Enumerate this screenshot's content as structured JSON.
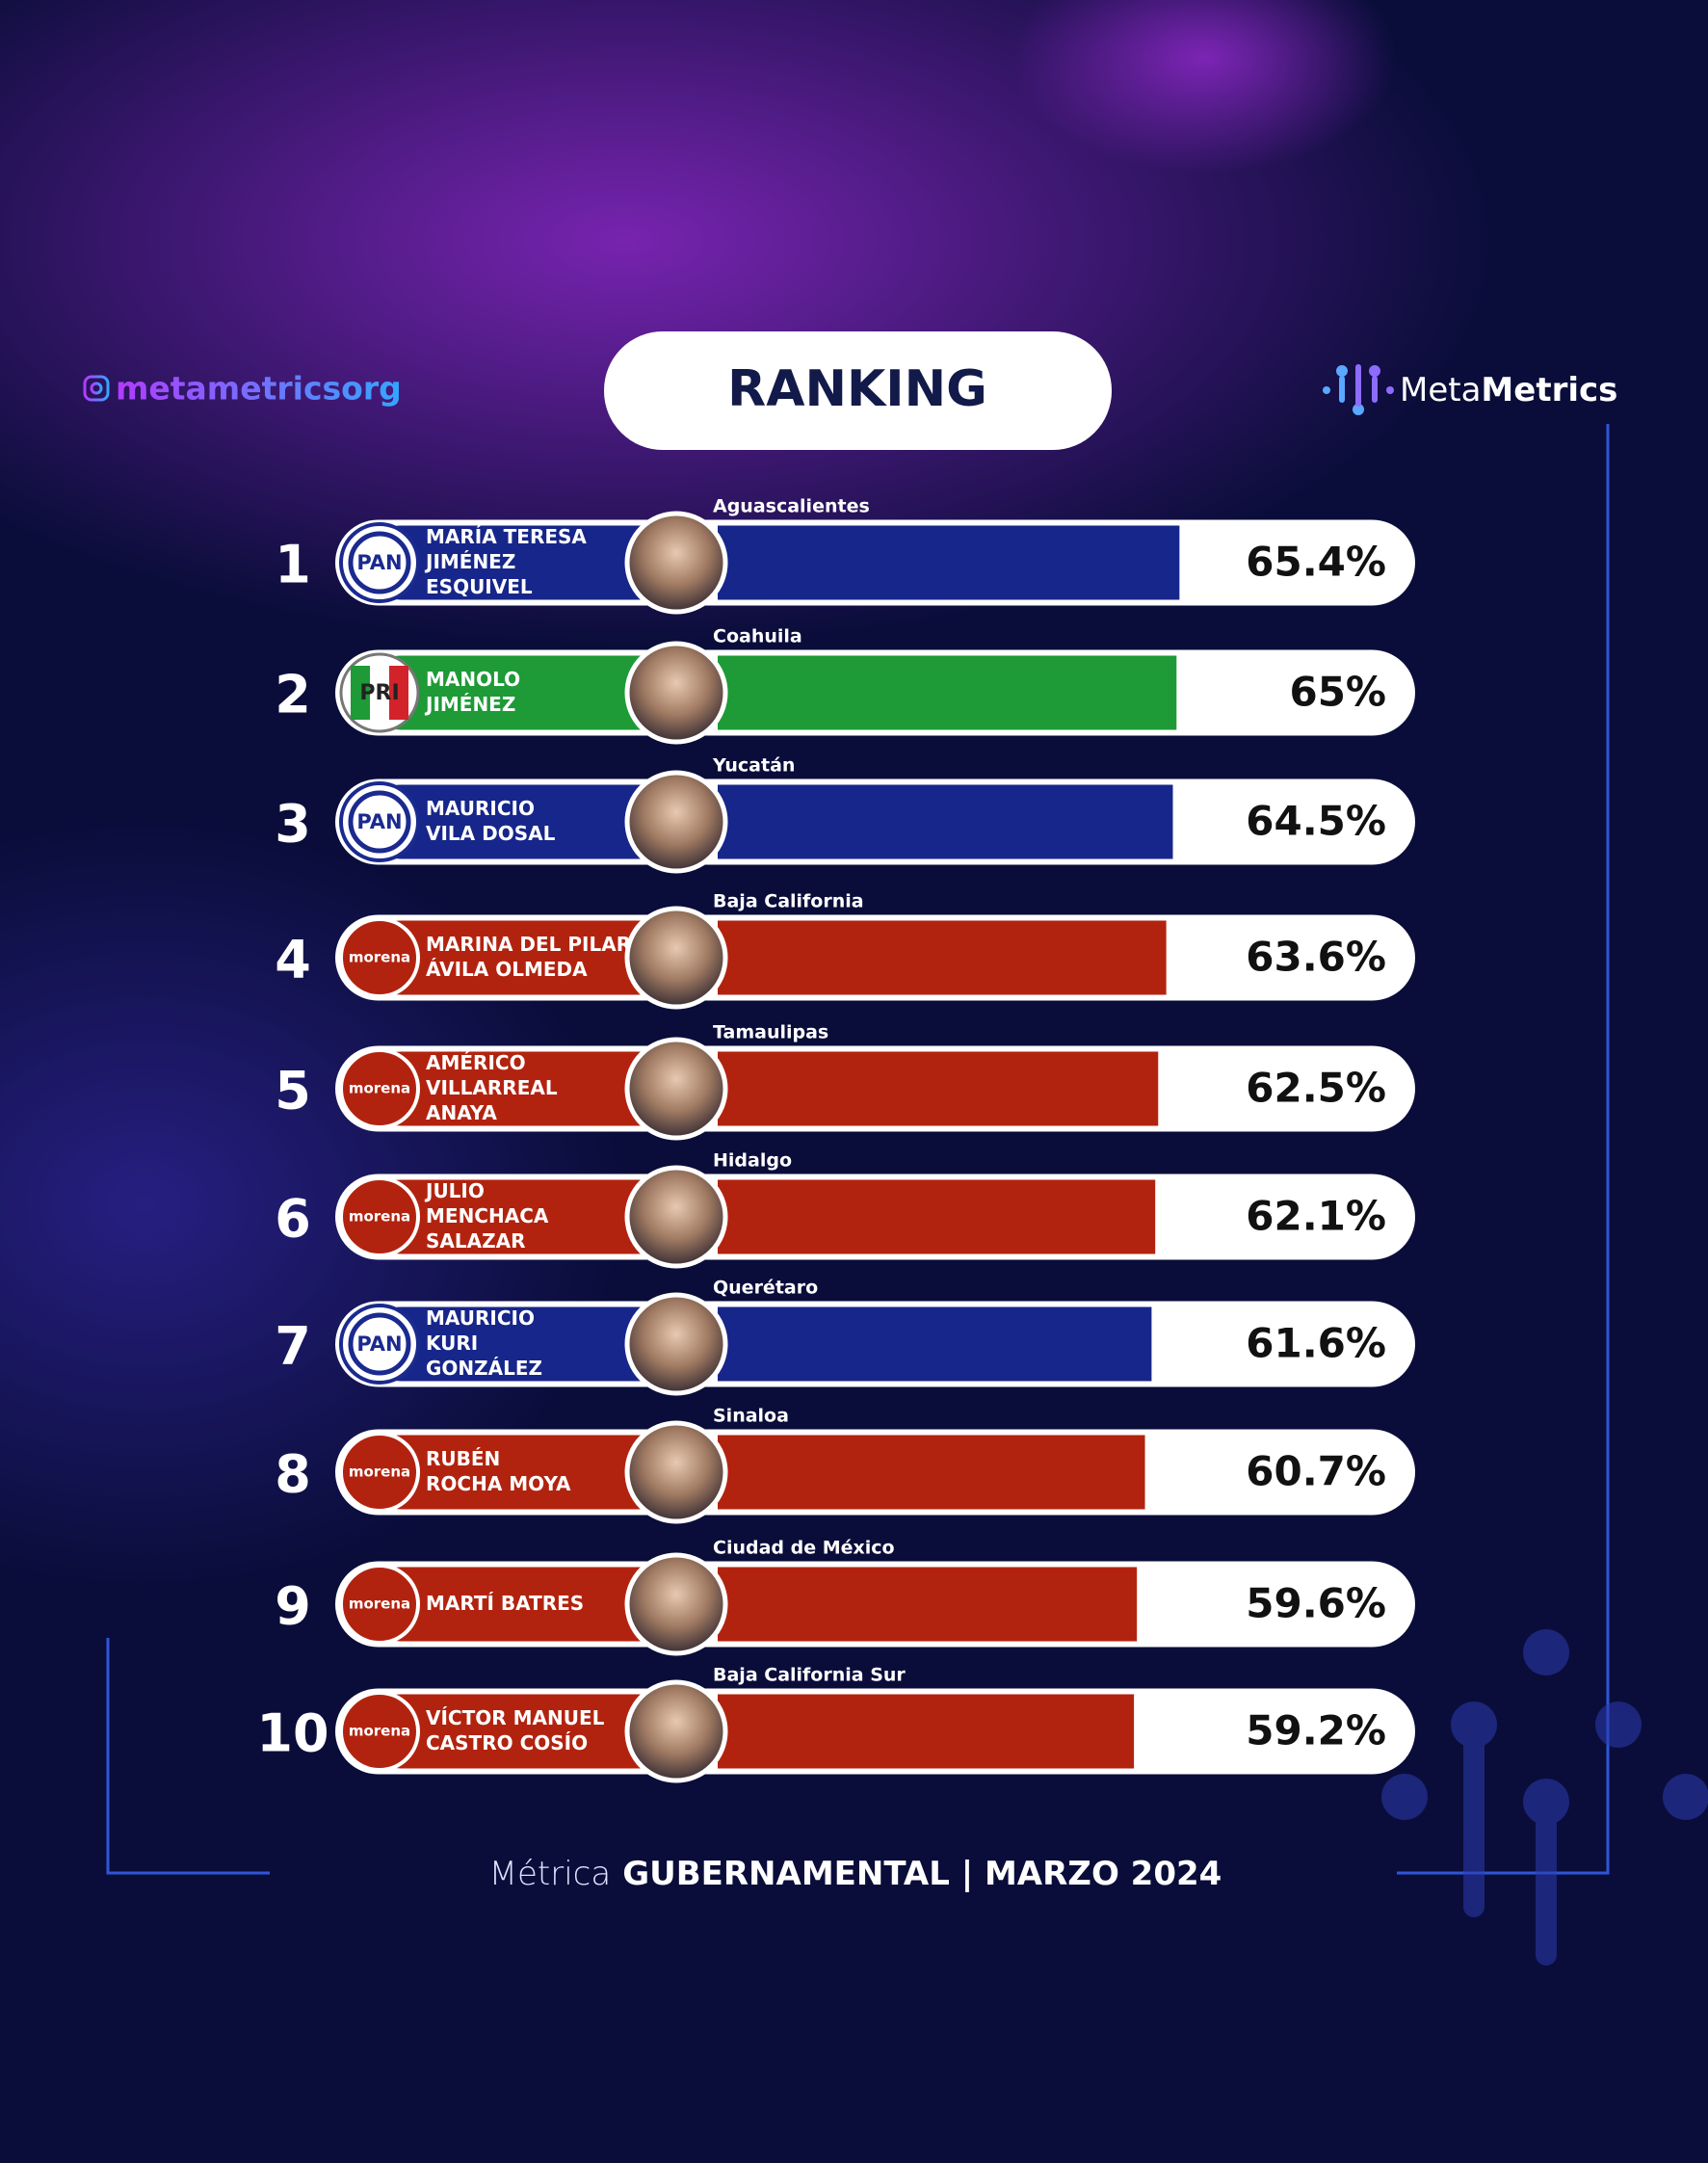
{
  "handle": "metametricsorg",
  "logo": {
    "light": "Meta",
    "bold": "Metrics"
  },
  "footer": {
    "light": "Métrica",
    "bold": "GUBERNAMENTAL | MARZO 2024"
  },
  "chart_data": {
    "type": "bar",
    "title": "RANKING",
    "ranks": [
      1,
      2,
      3,
      4,
      5,
      6,
      7,
      8,
      9,
      10
    ],
    "categories": [
      "MARÍA TERESA\nJIMÉNEZ\nESQUIVEL",
      "MANOLO\nJIMÉNEZ",
      "MAURICIO\nVILA DOSAL",
      "MARINA DEL PILAR\nÁVILA OLMEDA",
      "AMÉRICO\nVILLARREAL\nANAYA",
      "JULIO\nMENCHACA\nSALAZAR",
      "MAURICIO\nKURI\nGONZÁLEZ",
      "RUBÉN\nROCHA MOYA",
      "MARTÍ BATRES",
      "VÍCTOR MANUEL\nCASTRO COSÍO"
    ],
    "states": [
      "Aguascalientes",
      "Coahuila",
      "Yucatán",
      "Baja California",
      "Tamaulipas",
      "Hidalgo",
      "Querétaro",
      "Sinaloa",
      "Ciudad de México",
      "Baja California Sur"
    ],
    "parties": [
      "PAN",
      "PRI",
      "PAN",
      "morena",
      "morena",
      "morena",
      "PAN",
      "morena",
      "morena",
      "morena"
    ],
    "party_colors": {
      "PAN": "#17268a",
      "PRI": "#1e9a36",
      "morena": "#b2230f"
    },
    "values": [
      65.4,
      65,
      64.5,
      63.6,
      62.5,
      62.1,
      61.6,
      60.7,
      59.6,
      59.2
    ],
    "value_labels": [
      "65.4%",
      "65%",
      "64.5%",
      "63.6%",
      "62.5%",
      "62.1%",
      "61.6%",
      "60.7%",
      "59.6%",
      "59.2%"
    ]
  }
}
